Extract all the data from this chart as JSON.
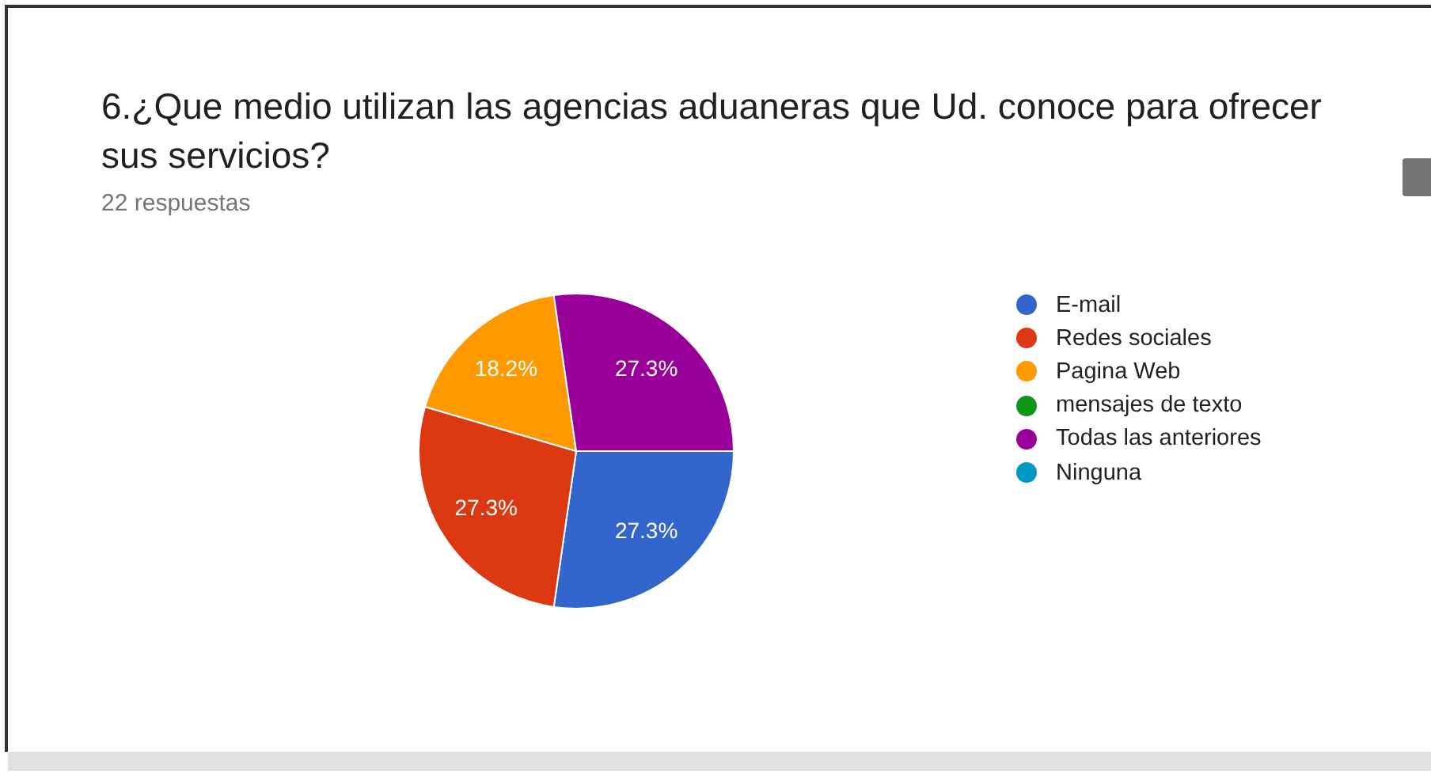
{
  "chart_data": {
    "type": "pie",
    "title": "6.¿Que medio utilizan las agencias aduaneras que Ud. conoce para ofrecer sus servicios?",
    "subtitle": "22 respuestas",
    "categories": [
      "E-mail",
      "Redes sociales",
      "Pagina Web",
      "mensajes de texto",
      "Todas las anteriores",
      "Ninguna"
    ],
    "values": [
      27.3,
      27.3,
      18.2,
      0,
      27.3,
      0
    ],
    "value_labels": [
      "27.3%",
      "27.3%",
      "18.2%",
      null,
      "27.3%",
      null
    ],
    "colors": [
      "#3366cc",
      "#dc3912",
      "#ff9900",
      "#109618",
      "#990099",
      "#0099c6"
    ],
    "legend": "right"
  }
}
